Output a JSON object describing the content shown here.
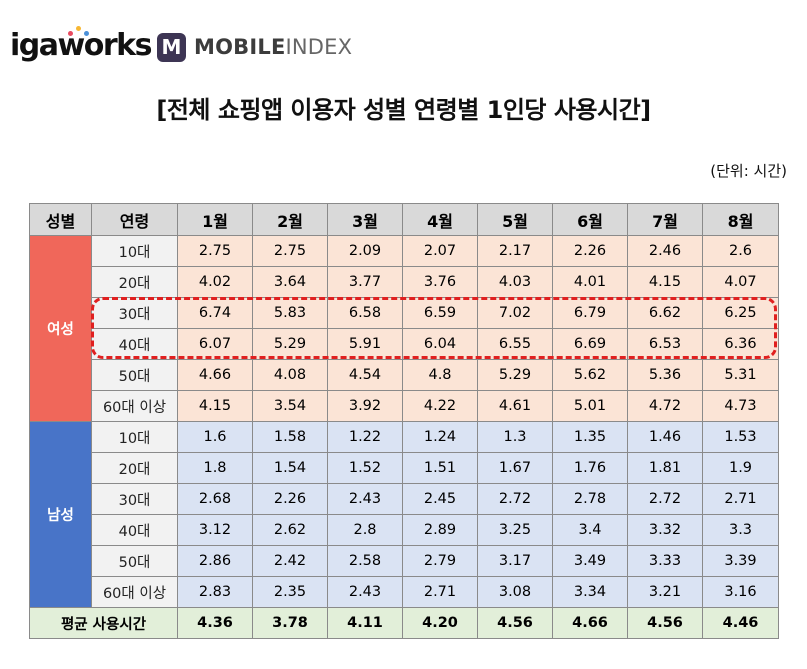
{
  "logos": {
    "igaworks": "igaworks",
    "mobileindex_badge": "M",
    "mobileindex_bold": "MOBILE",
    "mobileindex_light": "INDEX"
  },
  "title": "[전체 쇼핑앱 이용자 성별 연령별 1인당 사용시간]",
  "unit": "(단위: 시간)",
  "table": {
    "headers": [
      "성별",
      "연령",
      "1월",
      "2월",
      "3월",
      "4월",
      "5월",
      "6월",
      "7월",
      "8월"
    ],
    "groups": [
      {
        "gender": "여성",
        "rows": [
          {
            "age": "10대",
            "values": [
              "2.75",
              "2.75",
              "2.09",
              "2.07",
              "2.17",
              "2.26",
              "2.46",
              "2.6"
            ]
          },
          {
            "age": "20대",
            "values": [
              "4.02",
              "3.64",
              "3.77",
              "3.76",
              "4.03",
              "4.01",
              "4.15",
              "4.07"
            ]
          },
          {
            "age": "30대",
            "values": [
              "6.74",
              "5.83",
              "6.58",
              "6.59",
              "7.02",
              "6.79",
              "6.62",
              "6.25"
            ]
          },
          {
            "age": "40대",
            "values": [
              "6.07",
              "5.29",
              "5.91",
              "6.04",
              "6.55",
              "6.69",
              "6.53",
              "6.36"
            ]
          },
          {
            "age": "50대",
            "values": [
              "4.66",
              "4.08",
              "4.54",
              "4.8",
              "5.29",
              "5.62",
              "5.36",
              "5.31"
            ]
          },
          {
            "age": "60대 이상",
            "values": [
              "4.15",
              "3.54",
              "3.92",
              "4.22",
              "4.61",
              "5.01",
              "4.72",
              "4.73"
            ]
          }
        ]
      },
      {
        "gender": "남성",
        "rows": [
          {
            "age": "10대",
            "values": [
              "1.6",
              "1.58",
              "1.22",
              "1.24",
              "1.3",
              "1.35",
              "1.46",
              "1.53"
            ]
          },
          {
            "age": "20대",
            "values": [
              "1.8",
              "1.54",
              "1.52",
              "1.51",
              "1.67",
              "1.76",
              "1.81",
              "1.9"
            ]
          },
          {
            "age": "30대",
            "values": [
              "2.68",
              "2.26",
              "2.43",
              "2.45",
              "2.72",
              "2.78",
              "2.72",
              "2.71"
            ]
          },
          {
            "age": "40대",
            "values": [
              "3.12",
              "2.62",
              "2.8",
              "2.89",
              "3.25",
              "3.4",
              "3.32",
              "3.3"
            ]
          },
          {
            "age": "50대",
            "values": [
              "2.86",
              "2.42",
              "2.58",
              "2.79",
              "3.17",
              "3.49",
              "3.33",
              "3.39"
            ]
          },
          {
            "age": "60대 이상",
            "values": [
              "2.83",
              "2.35",
              "2.43",
              "2.71",
              "3.08",
              "3.34",
              "3.21",
              "3.16"
            ]
          }
        ]
      }
    ],
    "footer": {
      "label": "평균 사용시간",
      "values": [
        "4.36",
        "3.78",
        "4.11",
        "4.20",
        "4.56",
        "4.66",
        "4.56",
        "4.46"
      ]
    }
  },
  "colors": {
    "female": "#f0675a",
    "male": "#4874c8",
    "female_cell": "#fbe4d6",
    "male_cell": "#dae3f3",
    "footer": "#e2efd9",
    "highlight": "#e02020"
  }
}
